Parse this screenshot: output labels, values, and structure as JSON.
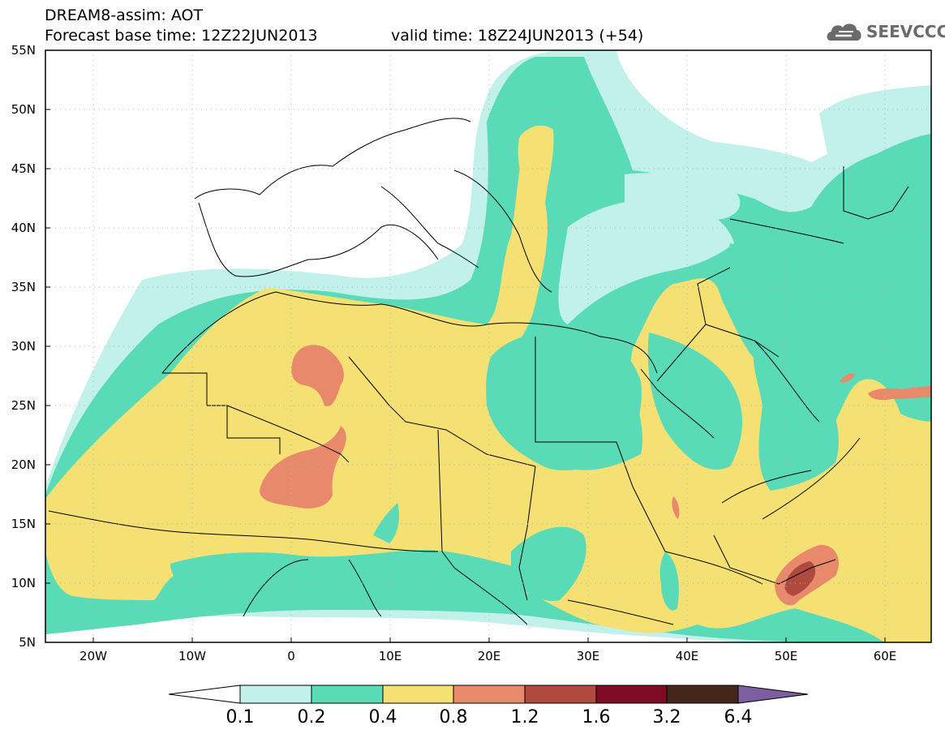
{
  "header": {
    "title_line1": "DREAM8-assim: AOT",
    "title_line2": "Forecast base time: 12Z22JUN2013",
    "valid_time": "valid time: 18Z24JUN2013 (+54)",
    "logo_text": "SEEVCCC"
  },
  "axes": {
    "lat_labels": [
      "55N",
      "50N",
      "45N",
      "40N",
      "35N",
      "30N",
      "25N",
      "20N",
      "15N",
      "10N",
      "5N"
    ],
    "lon_labels": [
      "20W",
      "10W",
      "0",
      "10E",
      "20E",
      "30E",
      "40E",
      "50E",
      "60E"
    ]
  },
  "colorbar": {
    "labels": [
      "0.1",
      "0.2",
      "0.4",
      "0.8",
      "1.2",
      "1.6",
      "3.2",
      "6.4"
    ],
    "colors": [
      "#c2f0ea",
      "#59dbb7",
      "#f5e173",
      "#e8896b",
      "#b04a40",
      "#7f0a24",
      "#43281a",
      "#7b5fa0"
    ]
  },
  "colors": {
    "low": "#c2f0ea",
    "lowmid": "#59dbb7",
    "mid": "#f5e173",
    "high": "#e8896b",
    "higher": "#b04a40",
    "border": "#000000"
  }
}
